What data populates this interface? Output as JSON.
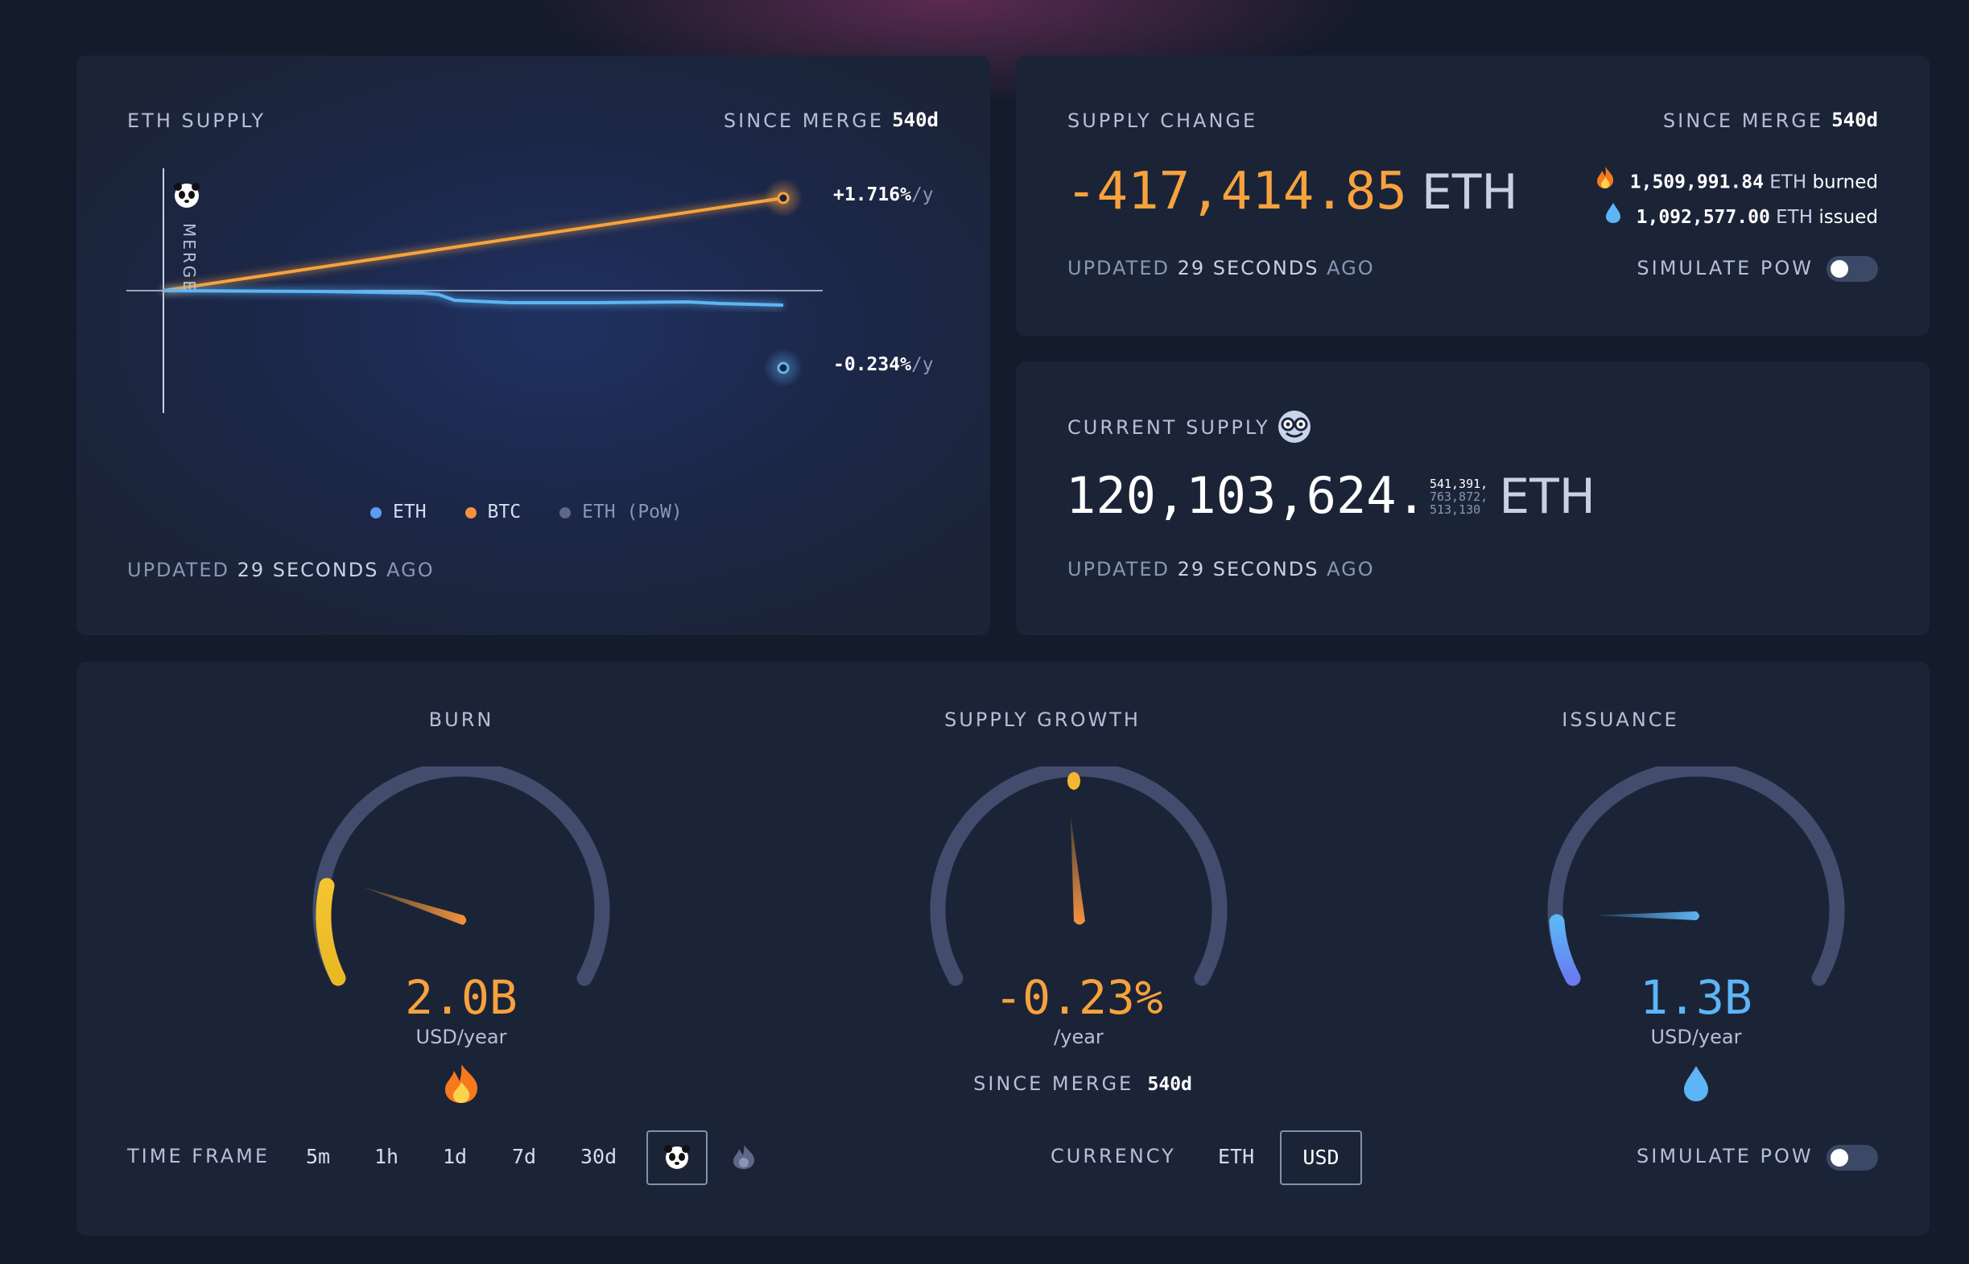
{
  "eth_supply": {
    "title": "ETH SUPPLY",
    "since_label": "SINCE MERGE",
    "since_value": "540d",
    "merge_label": "MERGE",
    "btc_rate": "+1.716%",
    "eth_rate": "-0.234%",
    "rate_unit": "/y",
    "legend": [
      "ETH",
      "BTC",
      "ETH (PoW)"
    ],
    "updated_prefix": "UPDATED",
    "updated_value": "29 SECONDS",
    "updated_suffix": "AGO"
  },
  "supply_change": {
    "title": "SUPPLY CHANGE",
    "since_label": "SINCE MERGE",
    "since_value": "540d",
    "value": "-417,414.85",
    "unit": "ETH",
    "burned_value": "1,509,991.84",
    "burned_unit": "ETH",
    "burned_label": "burned",
    "issued_value": "1,092,577.00",
    "issued_unit": "ETH",
    "issued_label": "issued",
    "updated_prefix": "UPDATED",
    "updated_value": "29 SECONDS",
    "updated_suffix": "AGO",
    "simulate_label": "SIMULATE PoW",
    "simulate_on": false
  },
  "current_supply": {
    "title": "CURRENT SUPPLY",
    "integer": "120,103,624.",
    "decimals_line1": "541,391,",
    "decimals_line2": "763,872,",
    "decimals_line3": "513,130",
    "unit": "ETH",
    "updated_prefix": "UPDATED",
    "updated_value": "29 SECONDS",
    "updated_suffix": "AGO"
  },
  "gauges": {
    "burn": {
      "title": "BURN",
      "value": "2.0B",
      "unit": "USD/year",
      "icon": "fire-icon"
    },
    "growth": {
      "title": "SUPPLY GROWTH",
      "value": "-0.23%",
      "unit": "/year",
      "since_label": "SINCE MERGE",
      "since_value": "540d"
    },
    "issuance": {
      "title": "ISSUANCE",
      "value": "1.3B",
      "unit": "USD/year",
      "icon": "droplet-icon"
    }
  },
  "controls": {
    "time_frame_label": "TIME FRAME",
    "time_frames": [
      "5m",
      "1h",
      "1d",
      "7d",
      "30d"
    ],
    "currency_label": "CURRENCY",
    "currency_options": [
      "ETH",
      "USD"
    ],
    "currency_selected": "USD",
    "simulate_label": "SIMULATE PoW",
    "simulate_on": false
  },
  "colors": {
    "panel": "#1b2437",
    "orange": "#f7a23d",
    "blue": "#5db5f5",
    "gauge_track": "#444c6e"
  },
  "chart_data": {
    "type": "line",
    "xlabel": "",
    "ylabel": "",
    "series": [
      {
        "name": "BTC",
        "end_rate": "+1.716%/y"
      },
      {
        "name": "ETH",
        "end_rate": "-0.234%/y"
      }
    ],
    "legend": [
      "ETH",
      "BTC",
      "ETH (PoW)"
    ],
    "annotation": "MERGE"
  }
}
